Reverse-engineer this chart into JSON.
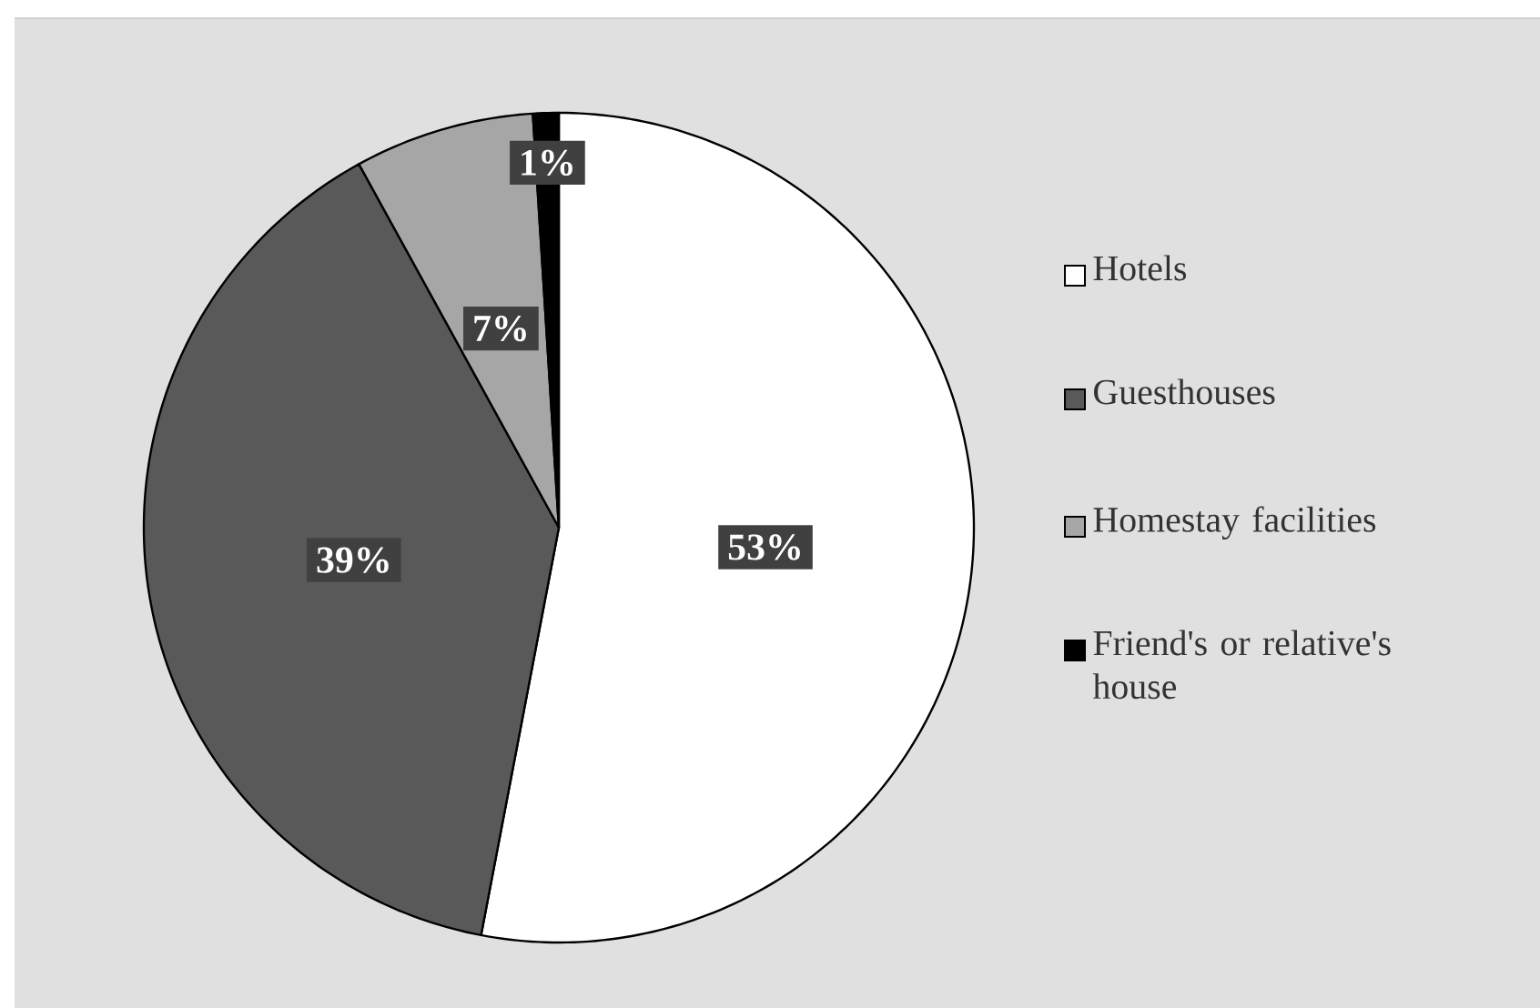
{
  "chart_data": {
    "type": "pie",
    "categories": [
      "Hotels",
      "Guesthouses",
      "Homestay facilities",
      "Friend's or relative's house"
    ],
    "values": [
      53,
      39,
      7,
      1
    ],
    "colors": [
      "#ffffff",
      "#595959",
      "#a6a6a6",
      "#000000"
    ],
    "value_labels": [
      "53%",
      "39%",
      "7%",
      "1%"
    ],
    "legend": "right"
  }
}
